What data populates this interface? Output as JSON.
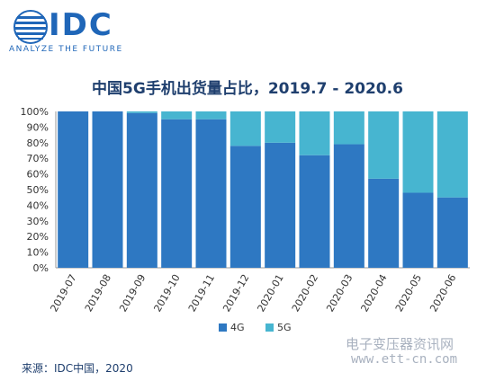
{
  "logo": {
    "text": "IDC",
    "tagline": "ANALYZE THE FUTURE"
  },
  "colors": {
    "series_4g": "#2e78c2",
    "series_5g": "#47b5d0",
    "title": "#1f3f6e",
    "brand": "#1f66b8"
  },
  "chart_data": {
    "type": "bar",
    "stacked": true,
    "title": "中国5G手机出货量占比，2019.7 - 2020.6",
    "categories": [
      "2019-07",
      "2019-08",
      "2019-09",
      "2019-10",
      "2019-11",
      "2019-12",
      "2020-01",
      "2020-02",
      "2020-03",
      "2020-04",
      "2020-05",
      "2020-06"
    ],
    "series": [
      {
        "name": "4G",
        "values": [
          100,
          100,
          99,
          95,
          95,
          78,
          80,
          72,
          79,
          57,
          48,
          45
        ]
      },
      {
        "name": "5G",
        "values": [
          0,
          0,
          1,
          5,
          5,
          22,
          20,
          28,
          21,
          43,
          52,
          55
        ]
      }
    ],
    "y_ticks": [
      "0%",
      "10%",
      "20%",
      "30%",
      "40%",
      "50%",
      "60%",
      "70%",
      "80%",
      "90%",
      "100%"
    ],
    "ylim": [
      0,
      100
    ],
    "legend_position": "bottom-center",
    "grid": false
  },
  "source": "来源：IDC中国，2020",
  "watermark": {
    "line1": "电子变压器资讯网",
    "line2": "www.ett-cn.com"
  }
}
